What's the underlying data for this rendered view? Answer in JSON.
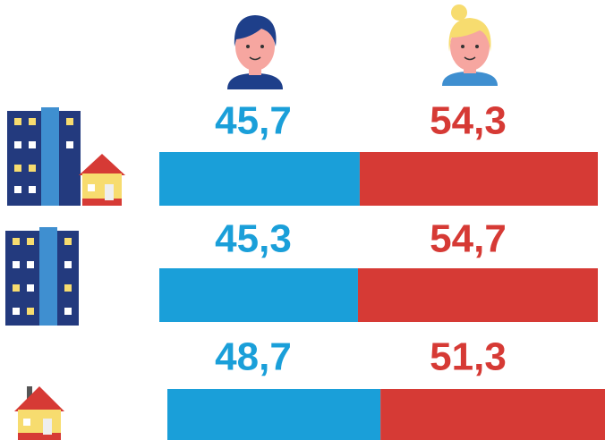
{
  "chart_data": {
    "type": "bar",
    "orientation": "horizontal",
    "stacked": true,
    "categories": [
      null,
      null,
      null
    ],
    "xlim": [
      0,
      100
    ],
    "series": [
      {
        "color": "#1a9fd9",
        "values": [
          45.7,
          45.3,
          48.7
        ],
        "value_labels": [
          "45,7",
          "45,3",
          "48,7"
        ]
      },
      {
        "color": "#d63a35",
        "values": [
          54.3,
          54.7,
          51.3
        ],
        "value_labels": [
          "54,3",
          "54,7",
          "51,3"
        ]
      }
    ]
  }
}
